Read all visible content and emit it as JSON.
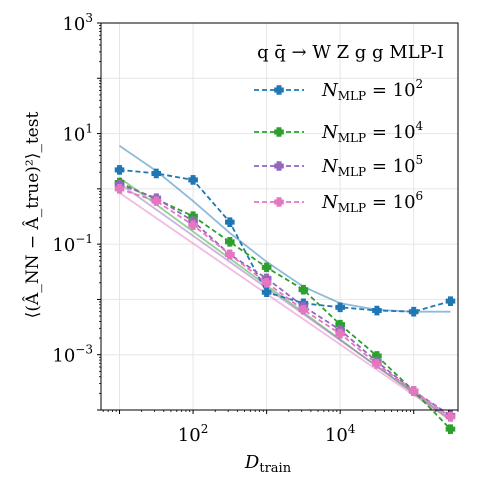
{
  "chart_data": {
    "type": "line",
    "title": "",
    "xlabel": "D",
    "xlabel_sub": "train",
    "ylabel": "⟨(Â_NN − Â_true)²⟩_test",
    "xscale": "log",
    "yscale": "log",
    "xlim": [
      5.6,
      400000
    ],
    "ylim": [
      0.0001,
      1000
    ],
    "grid": true,
    "x_ticks": [
      {
        "value": 100,
        "base": "10",
        "exp": "2"
      },
      {
        "value": 10000,
        "base": "10",
        "exp": "4"
      }
    ],
    "y_ticks": [
      {
        "value": 0.001,
        "base": "10",
        "exp": "−3"
      },
      {
        "value": 0.1,
        "base": "10",
        "exp": "−1"
      },
      {
        "value": 10,
        "base": "10",
        "exp": "1"
      },
      {
        "value": 1000,
        "base": "10",
        "exp": "3"
      }
    ],
    "legend": {
      "placement": "top-right",
      "title": "q q̄ → W Z g g MLP-I",
      "entries": [
        "N_MLP = 10^2",
        "N_MLP = 10^4",
        "N_MLP = 10^5",
        "N_MLP = 10^6"
      ]
    },
    "x": [
      10,
      31.6,
      100,
      316,
      1000,
      3160,
      10000,
      31600,
      100000,
      316000
    ],
    "series": [
      {
        "name": "N_MLP = 10^2",
        "color": "#1f77b4",
        "values": [
          2.2,
          1.9,
          1.45,
          0.25,
          0.0135,
          0.0085,
          0.0072,
          0.0063,
          0.006,
          0.0093
        ],
        "fit": [
          [
            10,
            6.0
          ],
          [
            31.6,
            2.1
          ],
          [
            100,
            0.6
          ],
          [
            316,
            0.16
          ],
          [
            1000,
            0.048
          ],
          [
            3160,
            0.017
          ],
          [
            10000,
            0.0085
          ],
          [
            31600,
            0.0065
          ],
          [
            100000,
            0.006
          ],
          [
            316000,
            0.006
          ]
        ]
      },
      {
        "name": "N_MLP = 10^4",
        "color": "#2ca02c",
        "values": [
          1.3,
          0.65,
          0.32,
          0.11,
          0.038,
          0.015,
          0.0035,
          0.00095,
          0.00022,
          4.5e-05
        ],
        "fit": [
          [
            10,
            1.6
          ],
          [
            316000,
            6.5e-05
          ]
        ]
      },
      {
        "name": "N_MLP = 10^5",
        "color": "#9467bd",
        "values": [
          1.2,
          0.68,
          0.26,
          0.065,
          0.024,
          0.0075,
          0.0028,
          0.00075,
          0.00022,
          8e-05
        ],
        "fit": [
          [
            10,
            1.25
          ],
          [
            316000,
            7e-05
          ]
        ]
      },
      {
        "name": "N_MLP = 10^6",
        "color": "#e377c2",
        "values": [
          1.0,
          0.6,
          0.22,
          0.065,
          0.02,
          0.0065,
          0.0024,
          0.00068,
          0.00022,
          7.5e-05
        ],
        "fit": [
          [
            10,
            0.85
          ],
          [
            316000,
            6.5e-05
          ]
        ]
      }
    ]
  }
}
